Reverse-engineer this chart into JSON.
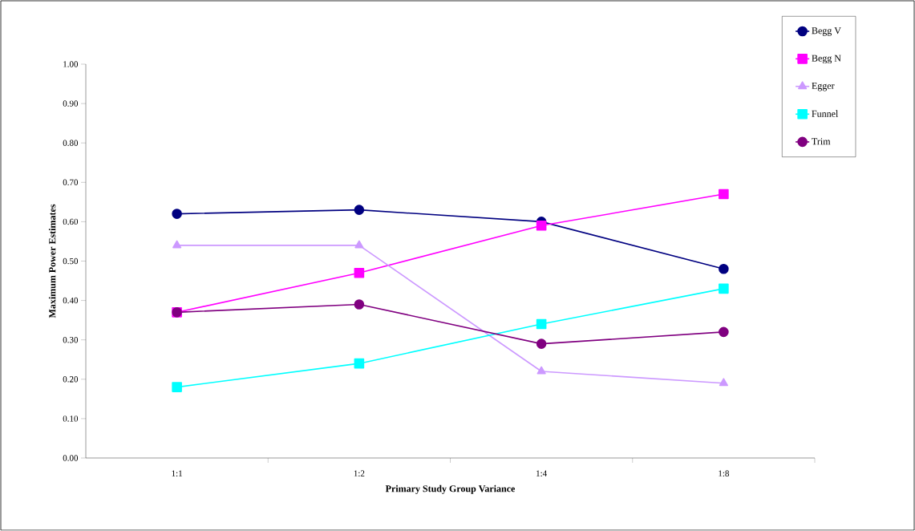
{
  "chart_data": {
    "type": "line",
    "xlabel": "Primary Study Group Variance",
    "ylabel": "Maximum Power Estimates",
    "categories": [
      "1:1",
      "1:2",
      "1:4",
      "1:8"
    ],
    "series": [
      {
        "name": "Begg V",
        "color": "#000080",
        "marker": "circle",
        "values": [
          0.62,
          0.63,
          0.6,
          0.48
        ]
      },
      {
        "name": "Begg N",
        "color": "#ff00ff",
        "marker": "square",
        "values": [
          0.37,
          0.47,
          0.59,
          0.67
        ]
      },
      {
        "name": "Egger",
        "color": "#cc99ff",
        "marker": "triangle",
        "values": [
          0.54,
          0.54,
          0.22,
          0.19
        ]
      },
      {
        "name": "Funnel",
        "color": "#00ffff",
        "marker": "square",
        "values": [
          0.18,
          0.24,
          0.34,
          0.43
        ]
      },
      {
        "name": "Trim",
        "color": "#800080",
        "marker": "circle",
        "values": [
          0.37,
          0.39,
          0.29,
          0.32
        ]
      }
    ],
    "ylim": [
      0,
      1
    ],
    "yticks": [
      {
        "value": 0,
        "label": "0.00"
      },
      {
        "value": 0.1,
        "label": "0.10"
      },
      {
        "value": 0.2,
        "label": "0.20"
      },
      {
        "value": 0.3,
        "label": "0.30"
      },
      {
        "value": 0.4,
        "label": "0.40"
      },
      {
        "value": 0.5,
        "label": "0.50"
      },
      {
        "value": 0.6,
        "label": "0.60"
      },
      {
        "value": 0.7,
        "label": "0.70"
      },
      {
        "value": 0.8,
        "label": "0.80"
      },
      {
        "value": 0.9,
        "label": "0.90"
      },
      {
        "value": 1,
        "label": "1.00"
      }
    ],
    "legend": "top right",
    "grid": false,
    "line_style": "solid"
  }
}
